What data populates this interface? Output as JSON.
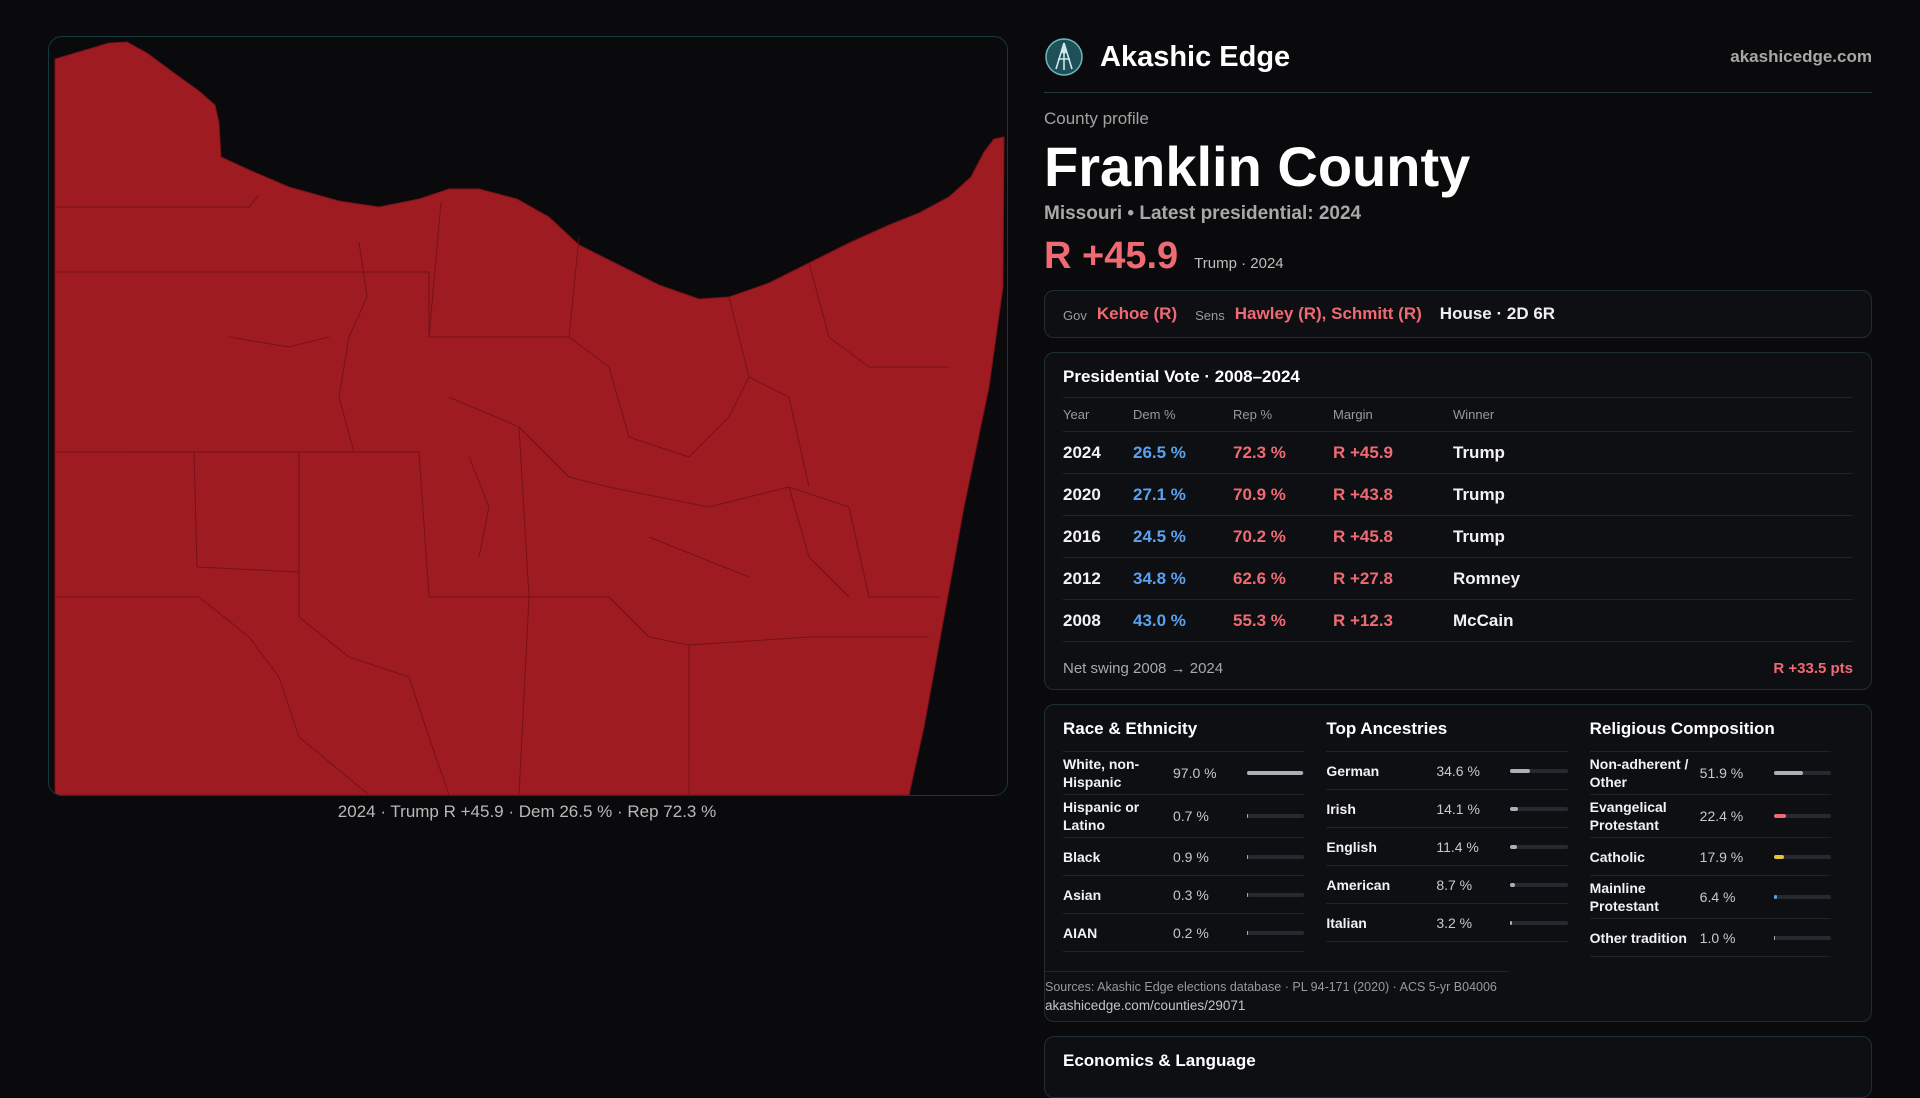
{
  "map": {
    "caption": "2024 · Trump R +45.9 · Dem 26.5 % · Rep 72.3 %",
    "fill_color": "#9e1b22"
  },
  "brand": {
    "name": "Akashic Edge",
    "site": "akashicedge.com",
    "logo_icon": "compass-logo-icon"
  },
  "profile": {
    "eyebrow": "County profile",
    "title": "Franklin County",
    "subtitle": "Missouri • Latest presidential: 2024",
    "margin": "R +45.9",
    "margin_note": "Trump · 2024"
  },
  "officials": {
    "gov_label": "Gov",
    "gov": "Kehoe (R)",
    "sens_label": "Sens",
    "sens": "Hawley (R), Schmitt (R)",
    "house": "House · 2D 6R"
  },
  "presidential": {
    "title": "Presidential Vote · 2008–2024",
    "headers": [
      "Year",
      "Dem %",
      "Rep %",
      "Margin",
      "Winner"
    ],
    "rows": [
      {
        "year": "2024",
        "dem": "26.5 %",
        "rep": "72.3 %",
        "margin": "R +45.9",
        "winner": "Trump"
      },
      {
        "year": "2020",
        "dem": "27.1 %",
        "rep": "70.9 %",
        "margin": "R +43.8",
        "winner": "Trump"
      },
      {
        "year": "2016",
        "dem": "24.5 %",
        "rep": "70.2 %",
        "margin": "R +45.8",
        "winner": "Trump"
      },
      {
        "year": "2012",
        "dem": "34.8 %",
        "rep": "62.6 %",
        "margin": "R +27.8",
        "winner": "Romney"
      },
      {
        "year": "2008",
        "dem": "43.0 %",
        "rep": "55.3 %",
        "margin": "R +12.3",
        "winner": "McCain"
      }
    ],
    "swing_label": "Net swing 2008 → 2024",
    "swing_value": "R +33.5 pts"
  },
  "race": {
    "title": "Race & Ethnicity",
    "bar_color": "#aab0ba",
    "rows": [
      {
        "label": "White, non-Hispanic",
        "value": "97.0 %",
        "pct": 97.0
      },
      {
        "label": "Hispanic or Latino",
        "value": "0.7 %",
        "pct": 0.7
      },
      {
        "label": "Black",
        "value": "0.9 %",
        "pct": 0.9
      },
      {
        "label": "Asian",
        "value": "0.3 %",
        "pct": 0.3
      },
      {
        "label": "AIAN",
        "value": "0.2 %",
        "pct": 0.2
      }
    ]
  },
  "ancestry": {
    "title": "Top Ancestries",
    "bar_color": "#aab0ba",
    "rows": [
      {
        "label": "German",
        "value": "34.6 %",
        "pct": 34.6
      },
      {
        "label": "Irish",
        "value": "14.1 %",
        "pct": 14.1
      },
      {
        "label": "English",
        "value": "11.4 %",
        "pct": 11.4
      },
      {
        "label": "American",
        "value": "8.7 %",
        "pct": 8.7
      },
      {
        "label": "Italian",
        "value": "3.2 %",
        "pct": 3.2
      }
    ]
  },
  "religion": {
    "title": "Religious Composition",
    "rows": [
      {
        "label": "Non-adherent / Other",
        "value": "51.9 %",
        "pct": 51.9,
        "color": "#aab0ba"
      },
      {
        "label": "Evangelical Protestant",
        "value": "22.4 %",
        "pct": 22.4,
        "color": "#ef6a73"
      },
      {
        "label": "Catholic",
        "value": "17.9 %",
        "pct": 17.9,
        "color": "#e8c23a"
      },
      {
        "label": "Mainline Protestant",
        "value": "6.4 %",
        "pct": 6.4,
        "color": "#5aa2f0"
      },
      {
        "label": "Other tradition",
        "value": "1.0 %",
        "pct": 1.0,
        "color": "#aab0ba"
      }
    ]
  },
  "sources": {
    "line1": "Sources: Akashic Edge elections database · PL 94-171 (2020) · ACS 5-yr B04006",
    "line2": "akashicedge.com/counties/29071"
  },
  "econ": {
    "title": "Economics & Language"
  }
}
